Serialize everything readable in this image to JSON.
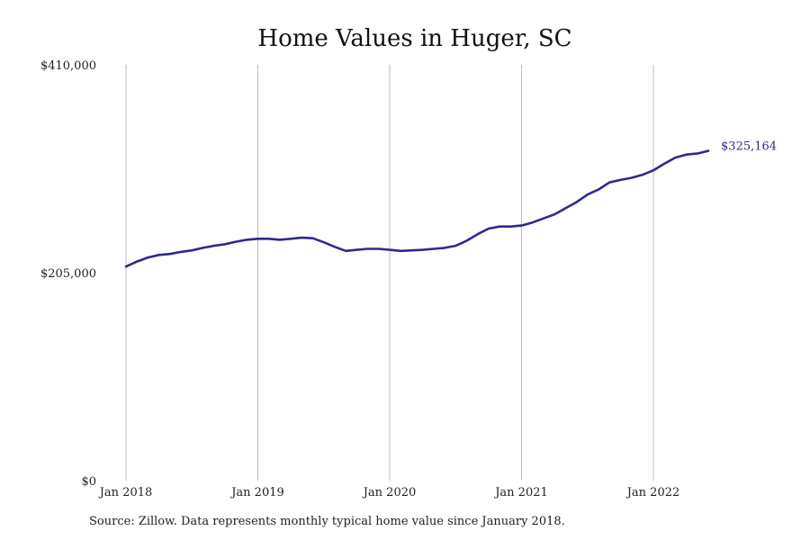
{
  "chart_data": {
    "type": "line",
    "title": "Home Values in Huger, SC",
    "xlabel": "",
    "ylabel": "",
    "ylim": [
      0,
      410000
    ],
    "yticks": [
      {
        "value": 0,
        "label": "$0"
      },
      {
        "value": 205000,
        "label": "$205,000"
      },
      {
        "value": 410000,
        "label": "$410,000"
      }
    ],
    "xticks": [
      {
        "value": "2018-01",
        "label": "Jan 2018"
      },
      {
        "value": "2019-01",
        "label": "Jan 2019"
      },
      {
        "value": "2020-01",
        "label": "Jan 2020"
      },
      {
        "value": "2021-01",
        "label": "Jan 2021"
      },
      {
        "value": "2022-01",
        "label": "Jan 2022"
      }
    ],
    "grid": "vertical",
    "color": "#2e2a8c",
    "series": [
      {
        "x": [
          "2018-01",
          "2018-02",
          "2018-03",
          "2018-04",
          "2018-05",
          "2018-06",
          "2018-07",
          "2018-08",
          "2018-09",
          "2018-10",
          "2018-11",
          "2018-12",
          "2019-01",
          "2019-02",
          "2019-03",
          "2019-04",
          "2019-05",
          "2019-06",
          "2019-07",
          "2019-08",
          "2019-09",
          "2019-10",
          "2019-11",
          "2019-12",
          "2020-01",
          "2020-02",
          "2020-03",
          "2020-04",
          "2020-05",
          "2020-06",
          "2020-07",
          "2020-08",
          "2020-09",
          "2020-10",
          "2020-11",
          "2020-12",
          "2021-01",
          "2021-02",
          "2021-03",
          "2021-04",
          "2021-05",
          "2021-06",
          "2021-07",
          "2021-08",
          "2021-09",
          "2021-10",
          "2021-11",
          "2021-12",
          "2022-01",
          "2022-02",
          "2022-03",
          "2022-04",
          "2022-05",
          "2022-06"
        ],
        "y": [
          211000,
          216000,
          220000,
          222500,
          223500,
          225500,
          227000,
          229500,
          231500,
          233000,
          235500,
          237500,
          238500,
          238500,
          237500,
          238500,
          239500,
          239000,
          235000,
          230500,
          226500,
          227500,
          228500,
          228500,
          227500,
          226500,
          227000,
          227500,
          228500,
          229500,
          231500,
          236500,
          243000,
          248500,
          250500,
          250500,
          251500,
          254500,
          258500,
          262500,
          268500,
          274500,
          282000,
          287000,
          294000,
          296500,
          298500,
          301500,
          306000,
          312500,
          318500,
          321500,
          322500,
          325164
        ]
      }
    ],
    "end_label": "$325,164"
  },
  "source": "Source: Zillow. Data represents monthly typical home value since January 2018."
}
